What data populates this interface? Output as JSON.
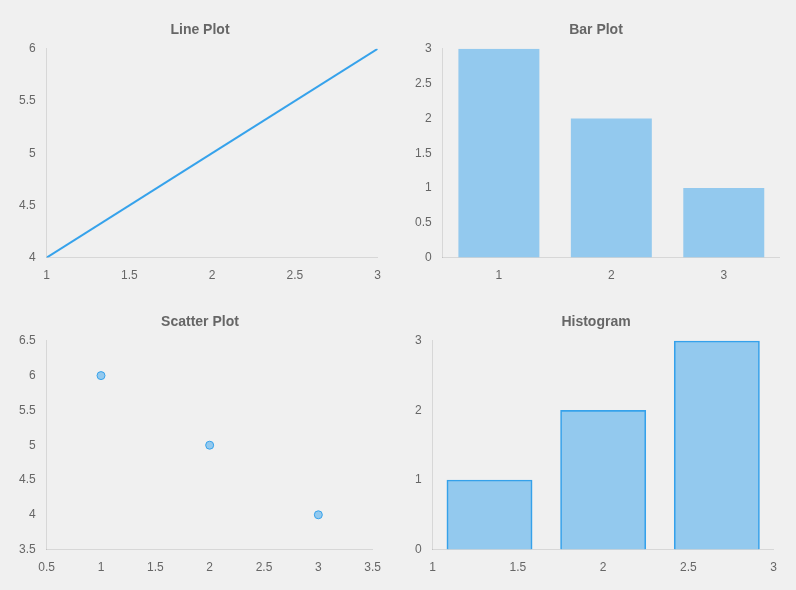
{
  "chart_data": [
    {
      "type": "line",
      "title": "Line Plot",
      "x": [
        1,
        2,
        3
      ],
      "values": [
        4,
        5,
        6
      ],
      "xlim": [
        1,
        3
      ],
      "xticks": [
        1,
        1.5,
        2,
        2.5,
        3
      ],
      "ylim": [
        4,
        6
      ],
      "yticks": [
        4,
        4.5,
        5,
        5.5,
        6
      ],
      "grid": false
    },
    {
      "type": "bar",
      "title": "Bar Plot",
      "categories": [
        "1",
        "2",
        "3"
      ],
      "values": [
        3,
        2,
        1
      ],
      "ylim": [
        0,
        3
      ],
      "yticks": [
        0,
        0.5,
        1,
        1.5,
        2,
        2.5,
        3
      ],
      "grid": false
    },
    {
      "type": "scatter",
      "title": "Scatter Plot",
      "x": [
        1,
        2,
        3
      ],
      "values": [
        6,
        5,
        4
      ],
      "xlim": [
        0.5,
        3.5
      ],
      "xticks": [
        0.5,
        1,
        1.5,
        2,
        2.5,
        3,
        3.5
      ],
      "ylim": [
        3.5,
        6.5
      ],
      "yticks": [
        3.5,
        4,
        4.5,
        5,
        5.5,
        6,
        6.5
      ],
      "grid": false
    },
    {
      "type": "histogram",
      "title": "Histogram",
      "bins": [
        1,
        1.6666666666666667,
        2.3333333333333335,
        3
      ],
      "values": [
        1,
        2,
        3
      ],
      "xlim": [
        1,
        3
      ],
      "xticks": [
        1,
        1.5,
        2,
        2.5,
        3
      ],
      "ylim": [
        0,
        3
      ],
      "yticks": [
        0,
        1,
        2,
        3
      ],
      "grid": false
    }
  ]
}
